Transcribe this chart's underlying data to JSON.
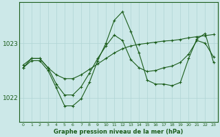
{
  "xlabel": "Graphe pression niveau de la mer (hPa)",
  "bg_color": "#cce8e8",
  "line_color": "#1a5c1a",
  "grid_color": "#afd4d4",
  "yticks": [
    1022,
    1023
  ],
  "xlim": [
    -0.5,
    23.5
  ],
  "ylim": [
    1021.55,
    1023.75
  ],
  "hours": [
    0,
    1,
    2,
    3,
    4,
    5,
    6,
    7,
    8,
    9,
    10,
    11,
    12,
    13,
    14,
    15,
    16,
    17,
    18,
    19,
    20,
    21,
    22,
    23
  ],
  "line1": [
    1022.55,
    1022.72,
    1022.72,
    1022.55,
    1022.42,
    1022.35,
    1022.35,
    1022.42,
    1022.52,
    1022.62,
    1022.72,
    1022.82,
    1022.9,
    1022.95,
    1022.98,
    1023.0,
    1023.02,
    1023.04,
    1023.05,
    1023.07,
    1023.1,
    1023.12,
    1023.14,
    1023.16
  ],
  "line2": [
    1022.6,
    1022.72,
    1022.72,
    1022.55,
    1022.25,
    1022.05,
    1022.05,
    1022.2,
    1022.45,
    1022.72,
    1022.95,
    1023.15,
    1023.05,
    1022.7,
    1022.55,
    1022.48,
    1022.5,
    1022.55,
    1022.58,
    1022.65,
    1022.8,
    1023.05,
    1023.0,
    1022.75
  ],
  "line3": [
    1022.55,
    1022.68,
    1022.68,
    1022.5,
    1022.18,
    1021.85,
    1021.85,
    1021.98,
    1022.28,
    1022.68,
    1023.0,
    1023.42,
    1023.58,
    1023.22,
    1022.82,
    1022.32,
    1022.25,
    1022.25,
    1022.22,
    1022.28,
    1022.72,
    1023.08,
    1023.18,
    1022.65
  ]
}
